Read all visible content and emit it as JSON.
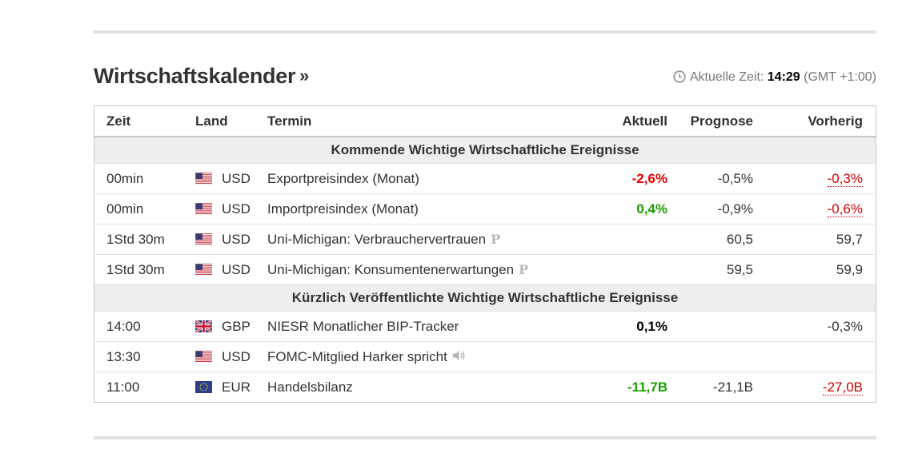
{
  "header": {
    "title": "Wirtschaftskalender",
    "title_arrows": "»",
    "clock_label": "Aktuelle Zeit:",
    "current_time": "14:29",
    "timezone": "(GMT +1:00)"
  },
  "columns": {
    "time": "Zeit",
    "country": "Land",
    "event": "Termin",
    "actual": "Aktuell",
    "forecast": "Prognose",
    "previous": "Vorherig"
  },
  "sections": {
    "upcoming": "Kommende Wichtige Wirtschaftliche Ereignisse",
    "recent": "Kürzlich Veröffentlichte Wichtige Wirtschaftliche Ereignisse"
  },
  "upcoming_rows": [
    {
      "time": "00min",
      "flag": "us-flag",
      "currency": "USD",
      "event": "Exportpreisindex (Monat)",
      "actual": "-2,6%",
      "forecast": "-0,5%",
      "previous": "-0,3%"
    },
    {
      "time": "00min",
      "flag": "us-flag",
      "currency": "USD",
      "event": "Importpreisindex (Monat)",
      "actual": "0,4%",
      "forecast": "-0,9%",
      "previous": "-0,6%"
    },
    {
      "time": "1Std 30m",
      "flag": "us-flag",
      "currency": "USD",
      "event": "Uni-Michigan: Verbrauchervertrauen",
      "marker": "P",
      "actual": "",
      "forecast": "60,5",
      "previous": "59,7"
    },
    {
      "time": "1Std 30m",
      "flag": "us-flag",
      "currency": "USD",
      "event": "Uni-Michigan: Konsumentenerwartungen",
      "marker": "P",
      "actual": "",
      "forecast": "59,5",
      "previous": "59,9"
    }
  ],
  "recent_rows": [
    {
      "time": "14:00",
      "flag": "uk-flag",
      "currency": "GBP",
      "event": "NIESR Monatlicher BIP-Tracker",
      "actual": "0,1%",
      "forecast": "",
      "previous": "-0,3%"
    },
    {
      "time": "13:30",
      "flag": "us-flag",
      "currency": "USD",
      "event": "FOMC-Mitglied Harker spricht",
      "icon": "speaker-icon",
      "actual": "",
      "forecast": "",
      "previous": ""
    },
    {
      "time": "11:00",
      "flag": "eu-flag",
      "currency": "EUR",
      "event": "Handelsbilanz",
      "actual": "-11,7B",
      "forecast": "-21,1B",
      "previous": "-27,0B"
    }
  ],
  "colors": {
    "negative": "#e40000",
    "positive": "#1ba000",
    "section_bg": "#eeeeee"
  }
}
